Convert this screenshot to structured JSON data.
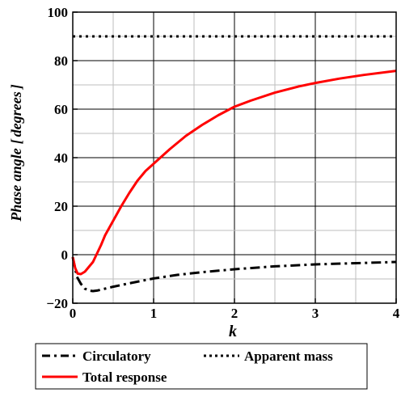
{
  "chart_data": {
    "type": "line",
    "xlabel": "k",
    "ylabel_main": "Phase angle",
    "ylabel_unit": "degrees",
    "xlim": [
      0,
      4
    ],
    "ylim": [
      -20,
      100
    ],
    "xticks": [
      0,
      1,
      2,
      3,
      4
    ],
    "yticks": [
      -20,
      0,
      20,
      40,
      60,
      80,
      100
    ],
    "xtick_labels": [
      "0",
      "1",
      "2",
      "3",
      "4"
    ],
    "ytick_labels": [
      "−20",
      "0",
      "20",
      "40",
      "60",
      "80",
      "100"
    ],
    "grid": true,
    "legend_placement": "bottom",
    "series": [
      {
        "name": "Circulatory",
        "color": "#000000",
        "style": "dashdot",
        "x": [
          0,
          0.05,
          0.1,
          0.15,
          0.2,
          0.25,
          0.3,
          0.4,
          0.5,
          0.7,
          1.0,
          1.3,
          1.6,
          2.0,
          2.5,
          3.0,
          3.5,
          4.0
        ],
        "y": [
          -1,
          -9,
          -12,
          -14,
          -14.8,
          -15,
          -14.8,
          -14,
          -13.2,
          -11.8,
          -9.8,
          -8.3,
          -7.2,
          -6,
          -4.8,
          -4,
          -3.5,
          -3
        ]
      },
      {
        "name": "Apparent mass",
        "color": "#000000",
        "style": "dotted",
        "x": [
          0,
          4
        ],
        "y": [
          90,
          90
        ]
      },
      {
        "name": "Total response",
        "color": "#ff0000",
        "style": "solid",
        "x": [
          0,
          0.03,
          0.06,
          0.1,
          0.15,
          0.2,
          0.25,
          0.3,
          0.35,
          0.4,
          0.5,
          0.6,
          0.7,
          0.8,
          0.9,
          1.0,
          1.2,
          1.4,
          1.6,
          1.8,
          2.0,
          2.2,
          2.5,
          2.8,
          3.0,
          3.3,
          3.6,
          4.0
        ],
        "y": [
          -1,
          -5.5,
          -7.8,
          -8,
          -7,
          -5,
          -3,
          0.5,
          4,
          8,
          14,
          20,
          25.5,
          30.5,
          34.5,
          37.5,
          43.5,
          49,
          53.5,
          57.5,
          61,
          63.5,
          66.8,
          69.4,
          70.8,
          72.6,
          74.1,
          75.8
        ]
      }
    ]
  }
}
